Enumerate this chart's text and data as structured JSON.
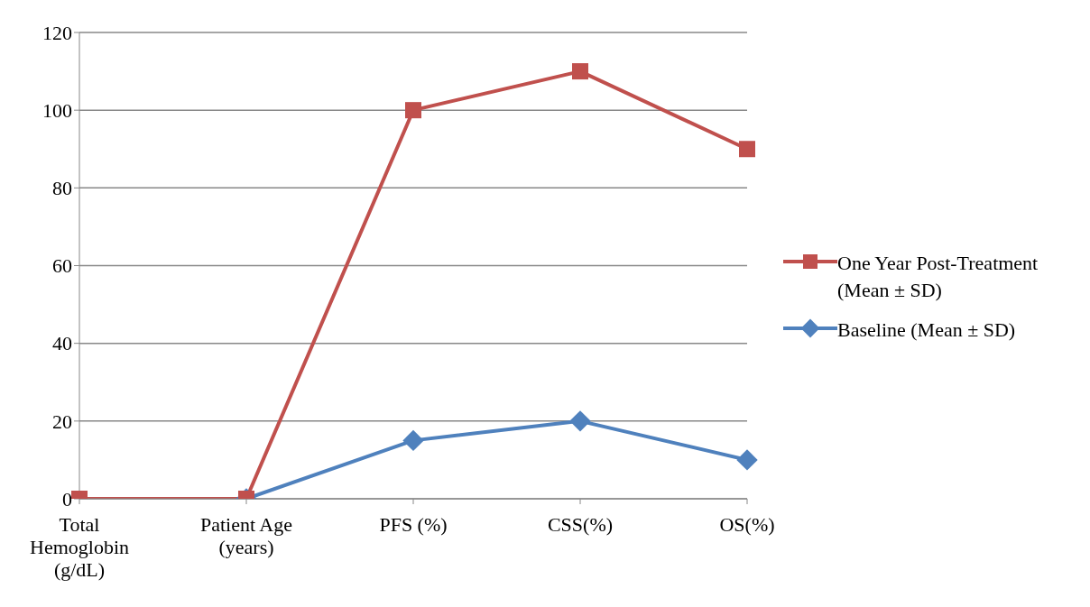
{
  "chart_data": {
    "type": "line",
    "categories": [
      "Total Hemoglobin (g/dL)",
      "Patient Age (years)",
      "PFS (%)",
      "CSS(%)",
      "OS(%)"
    ],
    "series": [
      {
        "name": "One Year Post-Treatment (Mean ± SD)",
        "color": "#c0504d",
        "marker": "square",
        "values": [
          0,
          0,
          100,
          110,
          90
        ]
      },
      {
        "name": "Baseline (Mean ± SD)",
        "color": "#4f81bd",
        "marker": "diamond",
        "values": [
          null,
          0,
          15,
          20,
          10
        ]
      }
    ],
    "ylim": [
      0,
      120
    ],
    "yticks": [
      0,
      20,
      40,
      60,
      80,
      100,
      120
    ],
    "grid": "y",
    "legend": "right"
  }
}
